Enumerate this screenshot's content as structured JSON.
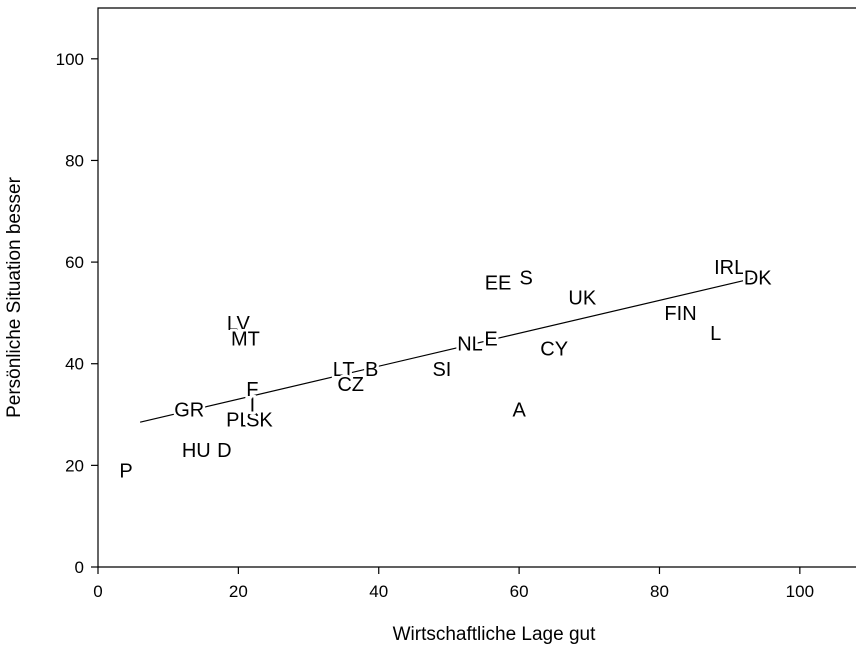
{
  "chart_data": {
    "type": "scatter",
    "xlabel": "Wirtschaftliche Lage gut",
    "ylabel": "Persönliche Situation besser",
    "xlim": [
      0,
      108
    ],
    "ylim": [
      0,
      110
    ],
    "x_ticks": [
      "0",
      "20",
      "40",
      "60",
      "80",
      "100"
    ],
    "y_ticks": [
      "0",
      "20",
      "40",
      "60",
      "80",
      "100"
    ],
    "grid": false,
    "legend": "none",
    "points": [
      {
        "label": "P",
        "x": 4,
        "y": 19
      },
      {
        "label": "HU",
        "x": 14,
        "y": 23
      },
      {
        "label": "D",
        "x": 18,
        "y": 23
      },
      {
        "label": "GR",
        "x": 13,
        "y": 31
      },
      {
        "label": "PL",
        "x": 20,
        "y": 29
      },
      {
        "label": "SK",
        "x": 23,
        "y": 29
      },
      {
        "label": "I",
        "x": 22,
        "y": 32
      },
      {
        "label": "F",
        "x": 22,
        "y": 35
      },
      {
        "label": "LV",
        "x": 20,
        "y": 48
      },
      {
        "label": "MT",
        "x": 21,
        "y": 45
      },
      {
        "label": "LT",
        "x": 35,
        "y": 39
      },
      {
        "label": "B",
        "x": 39,
        "y": 39
      },
      {
        "label": "CZ",
        "x": 36,
        "y": 36
      },
      {
        "label": "SI",
        "x": 49,
        "y": 39
      },
      {
        "label": "NL",
        "x": 53,
        "y": 44
      },
      {
        "label": "E",
        "x": 56,
        "y": 45
      },
      {
        "label": "EE",
        "x": 57,
        "y": 56
      },
      {
        "label": "S",
        "x": 61,
        "y": 57
      },
      {
        "label": "A",
        "x": 60,
        "y": 31
      },
      {
        "label": "CY",
        "x": 65,
        "y": 43
      },
      {
        "label": "UK",
        "x": 69,
        "y": 53
      },
      {
        "label": "FIN",
        "x": 83,
        "y": 50
      },
      {
        "label": "L",
        "x": 88,
        "y": 46
      },
      {
        "label": "IRL",
        "x": 90,
        "y": 59
      },
      {
        "label": "DK",
        "x": 94,
        "y": 57
      }
    ],
    "fit_line": {
      "x": [
        6,
        94
      ],
      "y": [
        28.5,
        57
      ]
    }
  }
}
